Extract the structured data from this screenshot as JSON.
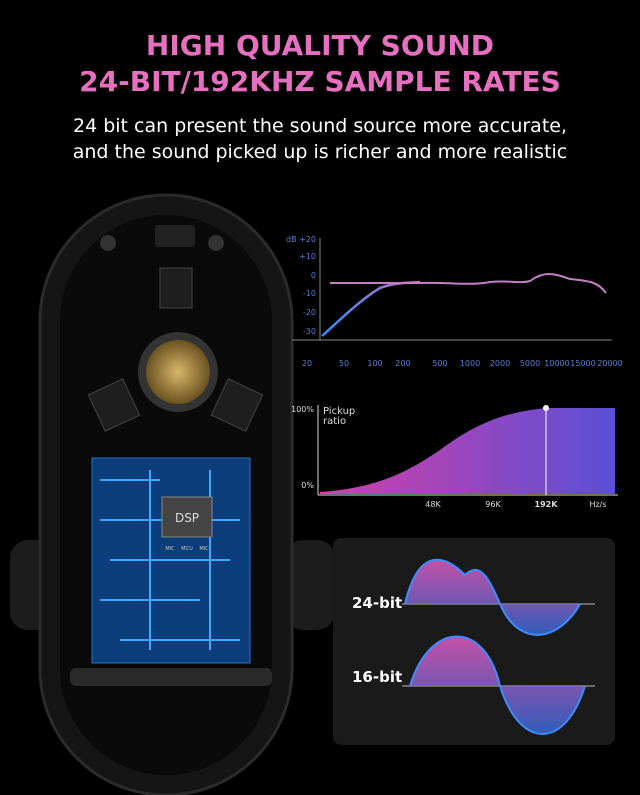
{
  "header": {
    "title_lines": [
      "HIGH QUALITY SOUND",
      "24-BIT/192KHZ SAMPLE RATES"
    ],
    "subtitle_lines": [
      "24 bit can present the sound source more accurate,",
      "and the sound picked up is richer and more realistic"
    ]
  },
  "frequency_chart": {
    "y_labels": [
      "dB +20",
      "+10",
      "0",
      "-10",
      "-20",
      "-30"
    ],
    "x_labels": [
      "20",
      "50",
      "100",
      "200",
      "500",
      "1000",
      "2000",
      "5000",
      "10000",
      "15000",
      "20000"
    ]
  },
  "pickup_chart": {
    "y_labels": [
      "100%",
      "0%"
    ],
    "legend_lines": [
      "Pickup",
      "ratio"
    ],
    "x_labels": [
      "48K",
      "96K",
      "192K",
      "Hz/s"
    ]
  },
  "bit_depth": {
    "labels": [
      "24-bit",
      "16-bit"
    ]
  },
  "chip": {
    "main": "DSP",
    "small": [
      "MIC",
      "MCU",
      "MIC"
    ]
  }
}
